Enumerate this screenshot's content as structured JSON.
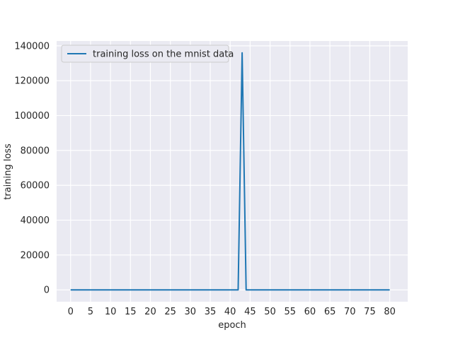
{
  "chart_data": {
    "type": "line",
    "title": "",
    "xlabel": "epoch",
    "ylabel": "training loss",
    "xlim": [
      -3.5,
      84.5
    ],
    "ylim": [
      -6800,
      142800
    ],
    "x_ticks": [
      0,
      5,
      10,
      15,
      20,
      25,
      30,
      35,
      40,
      45,
      50,
      55,
      60,
      65,
      70,
      75,
      80
    ],
    "y_ticks": [
      0,
      20000,
      40000,
      60000,
      80000,
      100000,
      120000,
      140000
    ],
    "grid": true,
    "legend_position": "upper-left",
    "series": [
      {
        "name": "training loss on the mnist data",
        "color": "#1f77b4",
        "points": [
          [
            0,
            0
          ],
          [
            42,
            0
          ],
          [
            43,
            136000
          ],
          [
            44,
            0
          ],
          [
            80,
            0
          ]
        ]
      }
    ]
  }
}
